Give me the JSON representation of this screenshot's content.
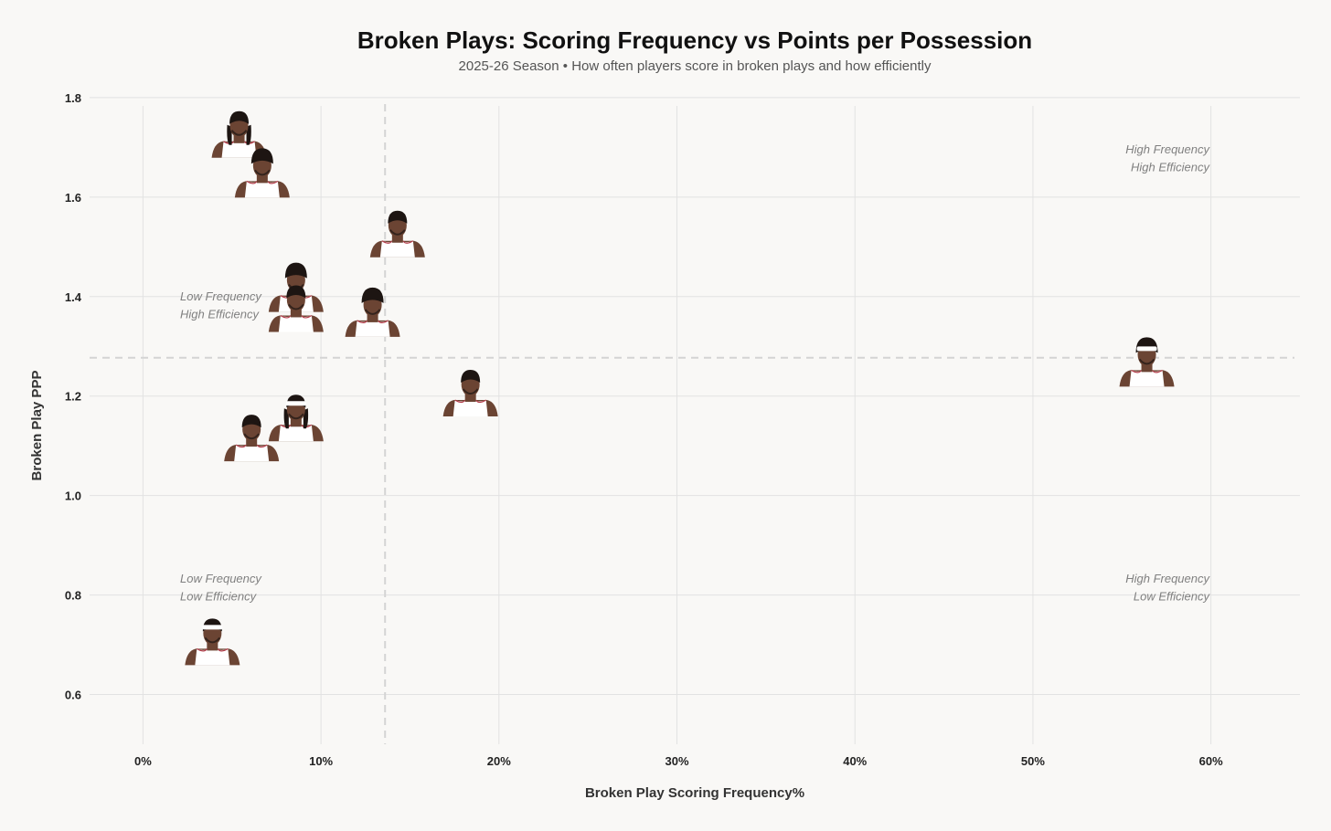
{
  "chart_data": {
    "type": "scatter",
    "title": "Broken Plays: Scoring Frequency vs Points per Possession",
    "subtitle": "2025-26 Season • How often players score in broken plays and how efficiently",
    "xlabel": "Broken Play Scoring Frequency%",
    "ylabel": "Broken Play PPP",
    "xlim": [
      -3,
      65
    ],
    "ylim": [
      0.5,
      1.82
    ],
    "xticks": [
      0,
      10,
      20,
      30,
      40,
      50,
      60
    ],
    "xtick_labels": [
      "0%",
      "10%",
      "20%",
      "30%",
      "40%",
      "50%",
      "60%"
    ],
    "yticks": [
      0.6,
      0.8,
      1.0,
      1.2,
      1.4,
      1.6,
      1.8
    ],
    "ytick_labels": [
      "0.6",
      "0.8",
      "1.0",
      "1.2",
      "1.4",
      "1.6",
      "1.8"
    ],
    "grid": true,
    "reference_lines": {
      "x": 13.6,
      "y": 1.277
    },
    "marker": "player-headshot",
    "points": [
      {
        "x": 5.4,
        "y": 1.69,
        "headband": false,
        "hair": "dreads"
      },
      {
        "x": 6.7,
        "y": 1.61,
        "headband": false,
        "hair": "curly"
      },
      {
        "x": 14.3,
        "y": 1.49,
        "headband": false,
        "hair": "short"
      },
      {
        "x": 8.6,
        "y": 1.38,
        "headband": false,
        "hair": "curly"
      },
      {
        "x": 8.6,
        "y": 1.34,
        "headband": false,
        "hair": "short"
      },
      {
        "x": 12.9,
        "y": 1.33,
        "headband": false,
        "hair": "curly"
      },
      {
        "x": 56.4,
        "y": 1.23,
        "headband": true,
        "hair": "curly"
      },
      {
        "x": 18.4,
        "y": 1.17,
        "headband": false,
        "hair": "short"
      },
      {
        "x": 8.6,
        "y": 1.12,
        "headband": true,
        "hair": "dreads"
      },
      {
        "x": 6.1,
        "y": 1.08,
        "headband": false,
        "hair": "short"
      },
      {
        "x": 3.9,
        "y": 0.67,
        "headband": true,
        "hair": "short"
      }
    ],
    "quadrant_labels": [
      {
        "position": "top-right",
        "lines": [
          "High Frequency",
          "High Efficiency"
        ]
      },
      {
        "position": "upper-left",
        "lines": [
          "Low Frequency",
          "High Efficiency"
        ]
      },
      {
        "position": "bottom-left",
        "lines": [
          "Low Frequency",
          "Low Efficiency"
        ]
      },
      {
        "position": "bottom-right",
        "lines": [
          "High Frequency",
          "Low Efficiency"
        ]
      }
    ],
    "colors": {
      "background": "#f9f8f6",
      "skin": "#6b4433",
      "jersey": "#ffffff",
      "hair": "#1d1512",
      "trim": "#b23a48"
    }
  }
}
